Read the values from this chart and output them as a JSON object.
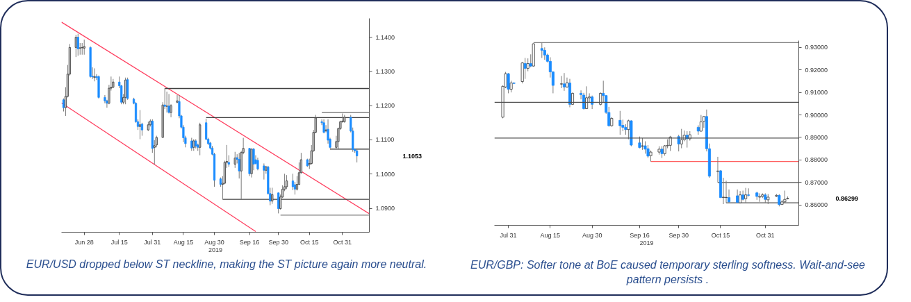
{
  "chart_data": [
    {
      "type": "candlestick",
      "xlabel": "2019",
      "xlim": [
        "2019-06-17",
        "2019-11-13"
      ],
      "ylim": [
        1.083,
        1.1455
      ],
      "xticks": [
        {
          "value": "2019-06-28",
          "label": "Jun 28"
        },
        {
          "value": "2019-07-15",
          "label": "Jul 15"
        },
        {
          "value": "2019-07-31",
          "label": "Jul 31"
        },
        {
          "value": "2019-08-15",
          "label": "Aug 15"
        },
        {
          "value": "2019-08-30",
          "label": "Aug 30"
        },
        {
          "value": "2019-09-16",
          "label": "Sep 16"
        },
        {
          "value": "2019-09-30",
          "label": "Sep 30"
        },
        {
          "value": "2019-10-15",
          "label": "Oct 15"
        },
        {
          "value": "2019-10-31",
          "label": "Oct 31"
        }
      ],
      "yticks": [
        {
          "value": 1.09,
          "label": "1.0900"
        },
        {
          "value": 1.1,
          "label": "1.1000"
        },
        {
          "value": 1.11,
          "label": "1.1100"
        },
        {
          "value": 1.12,
          "label": "1.1200"
        },
        {
          "value": 1.13,
          "label": "1.1300"
        },
        {
          "value": 1.14,
          "label": "1.1400"
        }
      ],
      "annotations": [
        "1.1053",
        "EUR/USD dropped below ST neckline, making the ST picture again more neutral."
      ],
      "series": [
        {
          "type": "line",
          "x": [
            "2019-06-17",
            "2019-11-13"
          ],
          "values": [
            1.1444,
            1.0884
          ],
          "color": "#ff4060"
        },
        {
          "type": "line",
          "x": [
            "2019-06-17",
            "2019-09-19"
          ],
          "values": [
            1.1208,
            1.0832
          ],
          "color": "#ff4060"
        },
        {
          "type": "line",
          "x": [
            "2019-08-06",
            "2019-11-13"
          ],
          "values": [
            1.125,
            1.125
          ],
          "color": "#404040"
        },
        {
          "type": "line",
          "x": [
            "2019-08-26",
            "2019-11-13"
          ],
          "values": [
            1.1165,
            1.1165
          ],
          "color": "#404040"
        },
        {
          "type": "line",
          "x": [
            "2019-10-21",
            "2019-11-13"
          ],
          "values": [
            1.118,
            1.118
          ],
          "color": "#808080"
        },
        {
          "type": "line",
          "x": [
            "2019-10-25",
            "2019-11-13"
          ],
          "values": [
            1.1073,
            1.1073
          ],
          "color": "#404040"
        },
        {
          "type": "line",
          "x": [
            "2019-09-03",
            "2019-11-13"
          ],
          "values": [
            1.0926,
            1.0926
          ],
          "color": "#404040"
        },
        {
          "type": "line",
          "x": [
            "2019-10-01",
            "2019-11-13"
          ],
          "values": [
            1.088,
            1.088
          ],
          "color": "#808080"
        },
        {
          "type": "candlestick",
          "x": [
            "2019-06-18",
            "2019-06-19",
            "2019-06-20",
            "2019-06-21",
            "2019-06-24",
            "2019-06-25",
            "2019-06-26",
            "2019-06-27",
            "2019-06-28",
            "2019-07-01",
            "2019-07-02",
            "2019-07-03",
            "2019-07-04",
            "2019-07-05",
            "2019-07-08",
            "2019-07-09",
            "2019-07-10",
            "2019-07-11",
            "2019-07-12",
            "2019-07-15",
            "2019-07-16",
            "2019-07-17",
            "2019-07-18",
            "2019-07-19",
            "2019-07-22",
            "2019-07-23",
            "2019-07-24",
            "2019-07-25",
            "2019-07-26",
            "2019-07-29",
            "2019-07-30",
            "2019-07-31",
            "2019-08-01",
            "2019-08-02",
            "2019-08-05",
            "2019-08-06",
            "2019-08-07",
            "2019-08-08",
            "2019-08-09",
            "2019-08-12",
            "2019-08-13",
            "2019-08-14",
            "2019-08-15",
            "2019-08-16",
            "2019-08-19",
            "2019-08-20",
            "2019-08-21",
            "2019-08-22",
            "2019-08-23",
            "2019-08-26",
            "2019-08-27",
            "2019-08-28",
            "2019-08-29",
            "2019-08-30",
            "2019-09-02",
            "2019-09-03",
            "2019-09-04",
            "2019-09-05",
            "2019-09-06",
            "2019-09-09",
            "2019-09-10",
            "2019-09-11",
            "2019-09-12",
            "2019-09-13",
            "2019-09-16",
            "2019-09-17",
            "2019-09-18",
            "2019-09-19",
            "2019-09-20",
            "2019-09-23",
            "2019-09-24",
            "2019-09-25",
            "2019-09-26",
            "2019-09-27",
            "2019-09-30",
            "2019-10-01",
            "2019-10-02",
            "2019-10-03",
            "2019-10-04",
            "2019-10-07",
            "2019-10-08",
            "2019-10-09",
            "2019-10-10",
            "2019-10-11",
            "2019-10-14",
            "2019-10-15",
            "2019-10-16",
            "2019-10-17",
            "2019-10-18",
            "2019-10-21",
            "2019-10-22",
            "2019-10-23",
            "2019-10-24",
            "2019-10-25",
            "2019-10-28",
            "2019-10-29",
            "2019-10-30",
            "2019-10-31",
            "2019-11-01",
            "2019-11-04",
            "2019-11-05",
            "2019-11-06",
            "2019-11-07"
          ],
          "ohlc": [
            [
              1.1217,
              1.1221,
              1.1183,
              1.1194
            ],
            [
              1.1194,
              1.1254,
              1.117,
              1.1227
            ],
            [
              1.1227,
              1.1319,
              1.1224,
              1.1292
            ],
            [
              1.1292,
              1.138,
              1.1288,
              1.137
            ],
            [
              1.137,
              1.1407,
              1.1342,
              1.14
            ],
            [
              1.14,
              1.141,
              1.1346,
              1.1366
            ],
            [
              1.1368,
              1.1383,
              1.1349,
              1.1369
            ],
            [
              1.1369,
              1.1383,
              1.1349,
              1.137
            ],
            [
              1.1368,
              1.1393,
              1.1349,
              1.1373
            ],
            [
              1.137,
              1.1373,
              1.1282,
              1.1285
            ],
            [
              1.1286,
              1.1312,
              1.1278,
              1.1284
            ],
            [
              1.1282,
              1.1309,
              1.1271,
              1.1285
            ],
            [
              1.1285,
              1.1292,
              1.1275,
              1.1282
            ],
            [
              1.1285,
              1.1288,
              1.1221,
              1.1224
            ],
            [
              1.1224,
              1.1231,
              1.1207,
              1.1214
            ],
            [
              1.1214,
              1.1217,
              1.1194,
              1.1207
            ],
            [
              1.1207,
              1.1261,
              1.1204,
              1.1251
            ],
            [
              1.1251,
              1.1285,
              1.1244,
              1.1254
            ],
            [
              1.1254,
              1.1278,
              1.1251,
              1.1269
            ],
            [
              1.1269,
              1.1285,
              1.1251,
              1.1258
            ],
            [
              1.1258,
              1.1261,
              1.1204,
              1.121
            ],
            [
              1.121,
              1.1234,
              1.1204,
              1.1224
            ],
            [
              1.1224,
              1.1282,
              1.1204,
              1.1275
            ],
            [
              1.1276,
              1.1282,
              1.1217,
              1.1221
            ],
            [
              1.1219,
              1.1223,
              1.1204,
              1.1207
            ],
            [
              1.1207,
              1.121,
              1.115,
              1.1153
            ],
            [
              1.1153,
              1.116,
              1.1129,
              1.1139
            ],
            [
              1.1139,
              1.1187,
              1.1102,
              1.1144
            ],
            [
              1.1146,
              1.115,
              1.1112,
              1.1129
            ],
            [
              1.1129,
              1.1153,
              1.1126,
              1.1144
            ],
            [
              1.1144,
              1.116,
              1.1139,
              1.1155
            ],
            [
              1.1155,
              1.116,
              1.1062,
              1.1075
            ],
            [
              1.1078,
              1.1099,
              1.1028,
              1.1083
            ],
            [
              1.1085,
              1.1112,
              1.1078,
              1.1107
            ],
            [
              1.1107,
              1.121,
              1.1106,
              1.1202
            ],
            [
              1.1202,
              1.1251,
              1.119,
              1.1198
            ],
            [
              1.1198,
              1.1241,
              1.118,
              1.1199
            ],
            [
              1.1199,
              1.1234,
              1.1177,
              1.118
            ],
            [
              1.118,
              1.1204,
              1.1166,
              1.12
            ],
            [
              1.121,
              1.1231,
              1.1207,
              1.1214
            ],
            [
              1.1212,
              1.1231,
              1.1163,
              1.117
            ],
            [
              1.117,
              1.1173,
              1.1133,
              1.1137
            ],
            [
              1.1137,
              1.1143,
              1.1093,
              1.1106
            ],
            [
              1.1106,
              1.1112,
              1.1078,
              1.1089
            ],
            [
              1.1097,
              1.1106,
              1.1068,
              1.1076
            ],
            [
              1.1078,
              1.1102,
              1.1068,
              1.1097
            ],
            [
              1.1097,
              1.1102,
              1.1075,
              1.1082
            ],
            [
              1.1085,
              1.1089,
              1.1068,
              1.1078
            ],
            [
              1.1078,
              1.115,
              1.1055,
              1.1144
            ],
            [
              1.115,
              1.1162,
              1.1099,
              1.1102
            ],
            [
              1.1102,
              1.1106,
              1.1085,
              1.1089
            ],
            [
              1.1091,
              1.1094,
              1.1072,
              1.1076
            ],
            [
              1.1076,
              1.1082,
              1.1055,
              1.1058
            ],
            [
              1.1058,
              1.1062,
              1.0963,
              1.0982
            ],
            [
              1.0986,
              1.099,
              1.0963,
              1.097
            ],
            [
              1.097,
              1.0994,
              1.0926,
              1.0973
            ],
            [
              1.0973,
              1.1039,
              1.097,
              1.1034
            ],
            [
              1.1034,
              1.1085,
              1.1018,
              1.1037
            ],
            [
              1.1034,
              1.1055,
              1.1021,
              1.1029
            ],
            [
              1.1029,
              1.1065,
              1.1018,
              1.1047
            ],
            [
              1.1048,
              1.1058,
              1.1031,
              1.1043
            ],
            [
              1.1043,
              1.1062,
              1.0987,
              1.1009
            ],
            [
              1.1009,
              1.1068,
              1.0926,
              1.1063
            ],
            [
              1.1063,
              1.1106,
              1.1058,
              1.1075
            ],
            [
              1.1075,
              1.1076,
              1.0994,
              1.1001
            ],
            [
              1.1001,
              1.1075,
              1.099,
              1.1073
            ],
            [
              1.1073,
              1.1076,
              1.1011,
              1.1029
            ],
            [
              1.1042,
              1.1055,
              1.1028,
              1.1031
            ],
            [
              1.104,
              1.1048,
              1.1011,
              1.1015
            ],
            [
              1.1024,
              1.1031,
              1.0984,
              1.1011
            ],
            [
              1.1011,
              1.1024,
              1.1001,
              1.1021
            ],
            [
              1.1021,
              1.1024,
              1.094,
              1.0943
            ],
            [
              1.0943,
              1.096,
              1.0909,
              1.0921
            ],
            [
              1.0921,
              1.096,
              1.0913,
              1.094
            ],
            [
              1.0945,
              1.0946,
              1.0885,
              1.0899
            ],
            [
              1.0899,
              1.094,
              1.0896,
              1.0933
            ],
            [
              1.0933,
              1.0967,
              1.093,
              1.0956
            ],
            [
              1.0956,
              1.1001,
              1.095,
              1.0963
            ],
            [
              1.0963,
              1.0997,
              1.0956,
              1.098
            ],
            [
              1.098,
              1.1001,
              1.0953,
              1.0963
            ],
            [
              1.0969,
              1.0977,
              1.094,
              1.0956
            ],
            [
              1.0956,
              1.0994,
              1.0952,
              1.097
            ],
            [
              1.097,
              1.1034,
              1.0968,
              1.1004
            ],
            [
              1.1004,
              1.1062,
              1.1001,
              1.1042
            ],
            [
              1.1042,
              1.1045,
              1.1021,
              1.1024
            ],
            [
              1.1028,
              1.1045,
              1.1015,
              1.1031
            ],
            [
              1.1031,
              1.1085,
              1.1028,
              1.1068
            ],
            [
              1.1068,
              1.1129,
              1.1065,
              1.1122
            ],
            [
              1.1122,
              1.1173,
              1.1119,
              1.1164
            ],
            [
              1.1153,
              1.116,
              1.1143,
              1.115
            ],
            [
              1.115,
              1.116,
              1.1119,
              1.1122
            ],
            [
              1.1126,
              1.1143,
              1.1122,
              1.1129
            ],
            [
              1.1131,
              1.116,
              1.1089,
              1.1099
            ],
            [
              1.1102,
              1.1106,
              1.1075,
              1.1078
            ],
            [
              1.1078,
              1.1112,
              1.1072,
              1.1095
            ],
            [
              1.1095,
              1.1136,
              1.1075,
              1.1133
            ],
            [
              1.1133,
              1.1156,
              1.1129,
              1.1153
            ],
            [
              1.1153,
              1.1177,
              1.115,
              1.1155
            ],
            [
              1.1153,
              1.1173,
              1.115,
              1.1166
            ],
            [
              1.1166,
              1.1173,
              1.1122,
              1.1126
            ],
            [
              1.1126,
              1.1136,
              1.1065,
              1.1072
            ],
            [
              1.1072,
              1.1075,
              1.1062,
              1.1068
            ],
            [
              1.1068,
              1.1072,
              1.1034,
              1.1053
            ]
          ],
          "colors": [
            "#1a8cff",
            "#c0c0c0",
            "#c0c0c0",
            "#c0c0c0",
            "#c0c0c0",
            "#1a8cff",
            "#c0c0c0",
            "#c0c0c0",
            "#c0c0c0",
            "#1a8cff",
            "#1a8cff",
            "#c0c0c0",
            "#1a8cff",
            "#1a8cff",
            "#1a8cff",
            "#1a8cff",
            "#c0c0c0",
            "#c0c0c0",
            "#c0c0c0",
            "#1a8cff",
            "#1a8cff",
            "#c0c0c0",
            "#c0c0c0",
            "#1a8cff",
            "#1a8cff",
            "#1a8cff",
            "#1a8cff",
            "#c0c0c0",
            "#1a8cff",
            "#c0c0c0",
            "#c0c0c0",
            "#1a8cff",
            "#c0c0c0",
            "#c0c0c0",
            "#c0c0c0",
            "#1a8cff",
            "#c0c0c0",
            "#1a8cff",
            "#c0c0c0",
            "#c0c0c0",
            "#1a8cff",
            "#1a8cff",
            "#1a8cff",
            "#1a8cff",
            "#1a8cff",
            "#c0c0c0",
            "#1a8cff",
            "#1a8cff",
            "#c0c0c0",
            "#1a8cff",
            "#1a8cff",
            "#1a8cff",
            "#1a8cff",
            "#1a8cff",
            "#1a8cff",
            "#c0c0c0",
            "#c0c0c0",
            "#c0c0c0",
            "#1a8cff",
            "#c0c0c0",
            "#1a8cff",
            "#1a8cff",
            "#c0c0c0",
            "#c0c0c0",
            "#1a8cff",
            "#c0c0c0",
            "#1a8cff",
            "#1a8cff",
            "#1a8cff",
            "#1a8cff",
            "#c0c0c0",
            "#1a8cff",
            "#1a8cff",
            "#c0c0c0",
            "#1a8cff",
            "#c0c0c0",
            "#c0c0c0",
            "#c0c0c0",
            "#c0c0c0",
            "#1a8cff",
            "#1a8cff",
            "#c0c0c0",
            "#c0c0c0",
            "#c0c0c0",
            "#1a8cff",
            "#c0c0c0",
            "#c0c0c0",
            "#c0c0c0",
            "#c0c0c0",
            "#1a8cff",
            "#1a8cff",
            "#c0c0c0",
            "#1a8cff",
            "#1a8cff",
            "#c0c0c0",
            "#c0c0c0",
            "#c0c0c0",
            "#c0c0c0",
            "#c0c0c0",
            "#1a8cff",
            "#1a8cff",
            "#1a8cff",
            "#1a8cff"
          ]
        }
      ]
    },
    {
      "type": "candlestick",
      "xlabel": "2019",
      "xlim": [
        "2019-07-26",
        "2019-11-12"
      ],
      "ylim": [
        0.851,
        0.933
      ],
      "xticks": [
        {
          "value": "2019-07-31",
          "label": "Jul 31"
        },
        {
          "value": "2019-08-15",
          "label": "Aug 15"
        },
        {
          "value": "2019-08-30",
          "label": "Aug 30"
        },
        {
          "value": "2019-09-16",
          "label": "Sep 16"
        },
        {
          "value": "2019-09-30",
          "label": "Sep 30"
        },
        {
          "value": "2019-10-15",
          "label": "Oct 15"
        },
        {
          "value": "2019-10-31",
          "label": "Oct 31"
        }
      ],
      "yticks": [
        {
          "value": 0.86,
          "label": "0.86000"
        },
        {
          "value": 0.87,
          "label": "0.87000"
        },
        {
          "value": 0.88,
          "label": "0.88000"
        },
        {
          "value": 0.89,
          "label": "0.89000"
        },
        {
          "value": 0.9,
          "label": "0.90000"
        },
        {
          "value": 0.91,
          "label": "0.91000"
        },
        {
          "value": 0.92,
          "label": "0.92000"
        },
        {
          "value": 0.93,
          "label": "0.93000"
        }
      ],
      "ref_lines": [
        {
          "axis": "y",
          "value": 0.9056,
          "color": "#505050"
        },
        {
          "axis": "y",
          "value": 0.8897,
          "color": "#505050"
        }
      ],
      "annotations": [
        "0.86299",
        "EUR/GBP: Softer tone at BoE caused temporary sterling softness. Wait-and-see pattern persists ."
      ],
      "series": [
        {
          "type": "line",
          "x": [
            "2019-08-09",
            "2019-11-12"
          ],
          "values": [
            0.9321,
            0.9321
          ],
          "color": "#808080"
        },
        {
          "type": "line",
          "x": [
            "2019-09-20",
            "2019-11-12"
          ],
          "values": [
            0.8793,
            0.8793
          ],
          "color": "#ff6060"
        },
        {
          "type": "line",
          "x": [
            "2019-10-14",
            "2019-11-12"
          ],
          "values": [
            0.87,
            0.87
          ],
          "color": "#505050"
        },
        {
          "type": "line",
          "x": [
            "2019-10-17",
            "2019-11-12"
          ],
          "values": [
            0.861,
            0.861
          ],
          "color": "#505050"
        },
        {
          "type": "candlestick",
          "x": [
            "2019-07-29",
            "2019-07-30",
            "2019-07-31",
            "2019-08-01",
            "2019-08-02",
            "2019-08-05",
            "2019-08-06",
            "2019-08-07",
            "2019-08-08",
            "2019-08-09",
            "2019-08-12",
            "2019-08-13",
            "2019-08-14",
            "2019-08-15",
            "2019-08-16",
            "2019-08-19",
            "2019-08-20",
            "2019-08-21",
            "2019-08-22",
            "2019-08-23",
            "2019-08-26",
            "2019-08-27",
            "2019-08-28",
            "2019-08-29",
            "2019-08-30",
            "2019-09-02",
            "2019-09-03",
            "2019-09-04",
            "2019-09-05",
            "2019-09-06",
            "2019-09-09",
            "2019-09-10",
            "2019-09-11",
            "2019-09-12",
            "2019-09-13",
            "2019-09-16",
            "2019-09-17",
            "2019-09-18",
            "2019-09-19",
            "2019-09-20",
            "2019-09-23",
            "2019-09-24",
            "2019-09-25",
            "2019-09-26",
            "2019-09-27",
            "2019-09-30",
            "2019-10-01",
            "2019-10-02",
            "2019-10-03",
            "2019-10-04",
            "2019-10-07",
            "2019-10-08",
            "2019-10-09",
            "2019-10-10",
            "2019-10-11",
            "2019-10-14",
            "2019-10-15",
            "2019-10-16",
            "2019-10-17",
            "2019-10-18",
            "2019-10-21",
            "2019-10-22",
            "2019-10-23",
            "2019-10-24",
            "2019-10-25",
            "2019-10-28",
            "2019-10-29",
            "2019-10-30",
            "2019-10-31",
            "2019-11-01",
            "2019-11-04",
            "2019-11-05",
            "2019-11-06",
            "2019-11-07",
            "2019-11-08"
          ],
          "ohlc": [
            [
              0.899,
              0.9131,
              0.8985,
              0.9127
            ],
            [
              0.9124,
              0.9191,
              0.9119,
              0.9183
            ],
            [
              0.9183,
              0.9186,
              0.9096,
              0.9114
            ],
            [
              0.9114,
              0.9152,
              0.91,
              0.9142
            ],
            [
              0.9142,
              0.9145,
              0.9137,
              0.914
            ],
            [
              0.9148,
              0.9235,
              0.914,
              0.9231
            ],
            [
              0.9228,
              0.9253,
              0.916,
              0.9207
            ],
            [
              0.9207,
              0.9251,
              0.9194,
              0.9228
            ],
            [
              0.9228,
              0.9269,
              0.9212,
              0.9217
            ],
            [
              0.9217,
              0.9318,
              0.9214,
              0.9316
            ],
            [
              0.9295,
              0.9321,
              0.9253,
              0.9287
            ],
            [
              0.9287,
              0.93,
              0.9245,
              0.9266
            ],
            [
              0.9266,
              0.9272,
              0.9233,
              0.9238
            ],
            [
              0.9238,
              0.9256,
              0.9166,
              0.9191
            ],
            [
              0.9191,
              0.9194,
              0.9096,
              0.9131
            ],
            [
              0.9137,
              0.9173,
              0.9119,
              0.9138
            ],
            [
              0.9138,
              0.9186,
              0.9107,
              0.9124
            ],
            [
              0.9124,
              0.9166,
              0.9121,
              0.9143
            ],
            [
              0.9142,
              0.916,
              0.9034,
              0.9047
            ],
            [
              0.9047,
              0.91,
              0.9045,
              0.9096
            ],
            [
              0.9096,
              0.9109,
              0.9069,
              0.909
            ],
            [
              0.9088,
              0.9098,
              0.9024,
              0.9028
            ],
            [
              0.9028,
              0.9127,
              0.9026,
              0.9076
            ],
            [
              0.9076,
              0.9096,
              0.9055,
              0.908
            ],
            [
              0.908,
              0.9086,
              0.9026,
              0.9047
            ],
            [
              0.9047,
              0.91,
              0.9042,
              0.9096
            ],
            [
              0.9096,
              0.9152,
              0.9055,
              0.9086
            ],
            [
              0.9086,
              0.9088,
              0.9005,
              0.9011
            ],
            [
              0.9011,
              0.9036,
              0.8948,
              0.8952
            ],
            [
              0.8952,
              0.899,
              0.8948,
              0.8985
            ],
            [
              0.8976,
              0.9018,
              0.8912,
              0.8952
            ],
            [
              0.8954,
              0.8979,
              0.8928,
              0.8945
            ],
            [
              0.8945,
              0.8959,
              0.8912,
              0.8935
            ],
            [
              0.8935,
              0.8979,
              0.8892,
              0.8974
            ],
            [
              0.8974,
              0.8976,
              0.8861,
              0.8866
            ],
            [
              0.8876,
              0.8904,
              0.8852,
              0.8855
            ],
            [
              0.8861,
              0.8897,
              0.8845,
              0.8863
            ],
            [
              0.8863,
              0.8883,
              0.8828,
              0.8848
            ],
            [
              0.885,
              0.8866,
              0.8809,
              0.8817
            ],
            [
              0.8819,
              0.8842,
              0.8793,
              0.8835
            ],
            [
              0.8835,
              0.8861,
              0.8824,
              0.8848
            ],
            [
              0.8848,
              0.8861,
              0.8809,
              0.8828
            ],
            [
              0.8828,
              0.8866,
              0.8819,
              0.8863
            ],
            [
              0.8863,
              0.8892,
              0.8852,
              0.8865
            ],
            [
              0.8865,
              0.8907,
              0.884,
              0.8902
            ],
            [
              0.8904,
              0.8912,
              0.8838,
              0.8871
            ],
            [
              0.8871,
              0.8938,
              0.8852,
              0.889
            ],
            [
              0.889,
              0.8931,
              0.8883,
              0.891
            ],
            [
              0.891,
              0.8928,
              0.8855,
              0.8894
            ],
            [
              0.8894,
              0.8928,
              0.8886,
              0.8912
            ],
            [
              0.8945,
              0.8954,
              0.8912,
              0.8928
            ],
            [
              0.8928,
              0.9,
              0.8925,
              0.8969
            ],
            [
              0.8972,
              0.8995,
              0.8943,
              0.8993
            ],
            [
              0.8993,
              0.9024,
              0.8838,
              0.885
            ],
            [
              0.885,
              0.8873,
              0.8721,
              0.8728
            ],
            [
              0.8749,
              0.8814,
              0.87,
              0.8751
            ],
            [
              0.8752,
              0.8755,
              0.8631,
              0.8633
            ],
            [
              0.8633,
              0.8721,
              0.8604,
              0.8635
            ],
            [
              0.8633,
              0.8708,
              0.861,
              0.8634
            ],
            [
              0.8633,
              0.8669,
              0.861,
              0.8614
            ],
            [
              0.8641,
              0.8669,
              0.861,
              0.8612
            ],
            [
              0.861,
              0.8662,
              0.861,
              0.8645
            ],
            [
              0.8645,
              0.8664,
              0.862,
              0.8625
            ],
            [
              0.8628,
              0.8676,
              0.861,
              0.8645
            ],
            [
              0.8645,
              0.8674,
              0.8638,
              0.8643
            ],
            [
              0.8654,
              0.8659,
              0.8623,
              0.8638
            ],
            [
              0.8635,
              0.8652,
              0.8614,
              0.8638
            ],
            [
              0.8638,
              0.8652,
              0.8631,
              0.8645
            ],
            [
              0.8645,
              0.8652,
              0.861,
              0.8625
            ],
            [
              0.8623,
              0.8649,
              0.8604,
              0.8635
            ],
            [
              0.8639,
              0.8649,
              0.8635,
              0.8643
            ],
            [
              0.8643,
              0.8648,
              0.8594,
              0.8602
            ],
            [
              0.8602,
              0.8623,
              0.8602,
              0.8614
            ],
            [
              0.8614,
              0.8664,
              0.861,
              0.8625
            ],
            [
              0.8628,
              0.8638,
              0.8625,
              0.86299
            ]
          ],
          "colors": [
            "#ffffff",
            "#ffffff",
            "#1a8cff",
            "#ffffff",
            "#1a8cff",
            "#ffffff",
            "#1a8cff",
            "#ffffff",
            "#1a8cff",
            "#ffffff",
            "#1a8cff",
            "#1a8cff",
            "#1a8cff",
            "#1a8cff",
            "#1a8cff",
            "#ffffff",
            "#1a8cff",
            "#ffffff",
            "#1a8cff",
            "#ffffff",
            "#1a8cff",
            "#1a8cff",
            "#ffffff",
            "#ffffff",
            "#1a8cff",
            "#ffffff",
            "#1a8cff",
            "#1a8cff",
            "#1a8cff",
            "#ffffff",
            "#1a8cff",
            "#1a8cff",
            "#1a8cff",
            "#ffffff",
            "#1a8cff",
            "#1a8cff",
            "#ffffff",
            "#1a8cff",
            "#1a8cff",
            "#ffffff",
            "#ffffff",
            "#1a8cff",
            "#ffffff",
            "#ffffff",
            "#ffffff",
            "#1a8cff",
            "#ffffff",
            "#ffffff",
            "#1a8cff",
            "#ffffff",
            "#1a8cff",
            "#ffffff",
            "#ffffff",
            "#1a8cff",
            "#1a8cff",
            "#ffffff",
            "#1a8cff",
            "#ffffff",
            "#ffffff",
            "#1a8cff",
            "#1a8cff",
            "#ffffff",
            "#1a8cff",
            "#ffffff",
            "#1a8cff",
            "#1a8cff",
            "#ffffff",
            "#ffffff",
            "#1a8cff",
            "#ffffff",
            "#ffffff",
            "#1a8cff",
            "#ffffff",
            "#ffffff",
            "#ffffff"
          ]
        }
      ]
    }
  ]
}
